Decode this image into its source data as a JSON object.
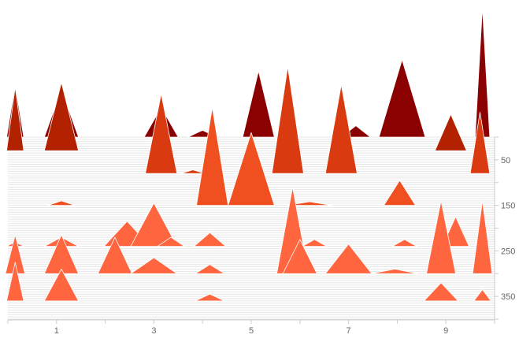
{
  "chart_data": {
    "type": "area",
    "subtype": "ridgeline-triangles",
    "title": "",
    "xlabel": "",
    "ylabel": "",
    "xlim": [
      0,
      10
    ],
    "ylim": [
      0,
      400
    ],
    "x_ticks": [
      "1",
      "3",
      "5",
      "7",
      "9"
    ],
    "x_tick_values": [
      1,
      3,
      5,
      7,
      9
    ],
    "y_ticks": [
      "50",
      "150",
      "250",
      "350"
    ],
    "y_tick_values": [
      50,
      150,
      250,
      350
    ],
    "y_axis_position": "right",
    "grid": true,
    "legend": "none",
    "baselines": [
      0,
      5,
      10,
      15,
      20,
      25,
      30,
      35,
      40,
      45,
      50,
      55,
      60,
      65,
      70,
      75,
      80,
      85,
      90,
      95,
      100,
      105,
      110,
      115,
      120,
      125,
      130,
      135,
      140,
      145,
      150,
      155,
      160,
      165,
      170,
      175,
      180,
      185,
      190,
      195,
      200,
      205,
      210,
      215,
      220,
      225,
      230,
      235,
      240,
      245,
      250,
      255,
      260,
      265,
      270,
      275,
      280,
      285,
      290,
      295,
      300,
      305,
      310,
      315,
      320,
      325,
      330,
      335,
      340,
      345,
      350,
      355,
      360,
      365,
      370,
      375,
      380,
      385,
      390,
      395,
      400
    ],
    "palette": [
      "#8b0000",
      "#b22200",
      "#d93a10",
      "#f0501f",
      "#ff6640"
    ],
    "series": [
      {
        "baseline": 0,
        "peaks": [
          {
            "x": 0.15,
            "w": 0.35,
            "h": 115
          },
          {
            "x": 1.1,
            "w": 0.7,
            "h": 105
          },
          {
            "x": 3.15,
            "w": 0.7,
            "h": 65
          },
          {
            "x": 4.0,
            "w": 0.6,
            "h": 15
          },
          {
            "x": 5.15,
            "w": 0.65,
            "h": 145
          },
          {
            "x": 7.15,
            "w": 0.6,
            "h": 25
          },
          {
            "x": 8.1,
            "w": 0.95,
            "h": 170
          },
          {
            "x": 9.75,
            "w": 0.3,
            "h": 285
          }
        ]
      },
      {
        "baseline": 30,
        "peaks": [
          {
            "x": 0.15,
            "w": 0.35,
            "h": 140
          },
          {
            "x": 1.1,
            "w": 0.7,
            "h": 150
          },
          {
            "x": 9.1,
            "w": 0.65,
            "h": 80
          }
        ]
      },
      {
        "baseline": 80,
        "peaks": [
          {
            "x": 3.15,
            "w": 0.65,
            "h": 175
          },
          {
            "x": 3.8,
            "w": 0.5,
            "h": 8
          },
          {
            "x": 5.75,
            "w": 0.65,
            "h": 235
          },
          {
            "x": 6.85,
            "w": 0.65,
            "h": 195
          },
          {
            "x": 9.7,
            "w": 0.4,
            "h": 135
          }
        ]
      },
      {
        "baseline": 150,
        "peaks": [
          {
            "x": 1.1,
            "w": 0.55,
            "h": 10
          },
          {
            "x": 4.2,
            "w": 0.65,
            "h": 215
          },
          {
            "x": 5.0,
            "w": 0.95,
            "h": 160
          },
          {
            "x": 6.2,
            "w": 0.9,
            "h": 8
          },
          {
            "x": 8.05,
            "w": 0.65,
            "h": 55
          }
        ]
      },
      {
        "baseline": 240,
        "peaks": [
          {
            "x": 0.15,
            "w": 0.35,
            "h": 10
          },
          {
            "x": 1.1,
            "w": 0.7,
            "h": 20
          },
          {
            "x": 2.45,
            "w": 0.95,
            "h": 55
          },
          {
            "x": 3.0,
            "w": 0.95,
            "h": 95
          },
          {
            "x": 3.35,
            "w": 0.55,
            "h": 20
          },
          {
            "x": 4.15,
            "w": 0.65,
            "h": 30
          },
          {
            "x": 6.3,
            "w": 0.5,
            "h": 15
          },
          {
            "x": 8.15,
            "w": 0.5,
            "h": 15
          },
          {
            "x": 9.2,
            "w": 0.55,
            "h": 65
          }
        ]
      },
      {
        "baseline": 300,
        "peaks": [
          {
            "x": 0.15,
            "w": 0.4,
            "h": 85
          },
          {
            "x": 1.1,
            "w": 0.7,
            "h": 85
          },
          {
            "x": 2.2,
            "w": 0.7,
            "h": 80
          },
          {
            "x": 3.0,
            "w": 0.95,
            "h": 35
          },
          {
            "x": 4.15,
            "w": 0.6,
            "h": 20
          },
          {
            "x": 5.85,
            "w": 0.65,
            "h": 190
          },
          {
            "x": 6.0,
            "w": 0.7,
            "h": 75
          },
          {
            "x": 7.0,
            "w": 0.95,
            "h": 65
          },
          {
            "x": 7.95,
            "w": 0.95,
            "h": 10
          },
          {
            "x": 8.9,
            "w": 0.6,
            "h": 160
          },
          {
            "x": 9.75,
            "w": 0.4,
            "h": 160
          }
        ]
      },
      {
        "baseline": 360,
        "peaks": [
          {
            "x": 0.15,
            "w": 0.35,
            "h": 85
          },
          {
            "x": 1.1,
            "w": 0.7,
            "h": 70
          },
          {
            "x": 4.15,
            "w": 0.6,
            "h": 15
          },
          {
            "x": 8.9,
            "w": 0.7,
            "h": 40
          },
          {
            "x": 9.75,
            "w": 0.35,
            "h": 25
          }
        ]
      }
    ]
  }
}
